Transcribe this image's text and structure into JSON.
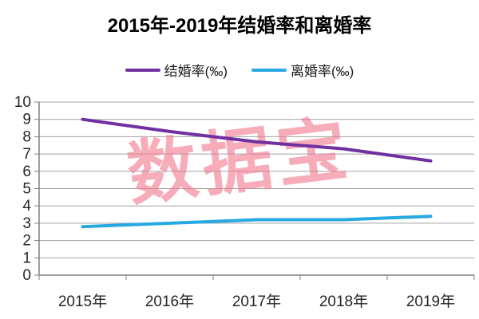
{
  "title": "2015年-2019年结婚率和离婚率",
  "watermark": {
    "text": "数据宝",
    "color": "#F2798F",
    "opacity": 0.62
  },
  "legend": {
    "items": [
      {
        "label": "结婚率(‰)",
        "color": "#7030A0"
      },
      {
        "label": "离婚率(‰)",
        "color": "#27A9E1"
      }
    ]
  },
  "chart_data": {
    "type": "line",
    "title": "2015年-2019年结婚率和离婚率",
    "categories": [
      "2015年",
      "2016年",
      "2017年",
      "2018年",
      "2019年"
    ],
    "series": [
      {
        "name": "结婚率(‰)",
        "color": "#7030A0",
        "values": [
          9.0,
          8.3,
          7.7,
          7.3,
          6.6
        ]
      },
      {
        "name": "离婚率(‰)",
        "color": "#27A9E1",
        "values": [
          2.8,
          3.0,
          3.2,
          3.2,
          3.4
        ]
      }
    ],
    "xlabel": "",
    "ylabel": "",
    "ylim": [
      0,
      10
    ],
    "ytick_step": 1,
    "grid": true,
    "legend_position": "top",
    "grid_color": "#A0A0A0",
    "axis_color": "#808080",
    "tick_label_color": "#262626"
  }
}
